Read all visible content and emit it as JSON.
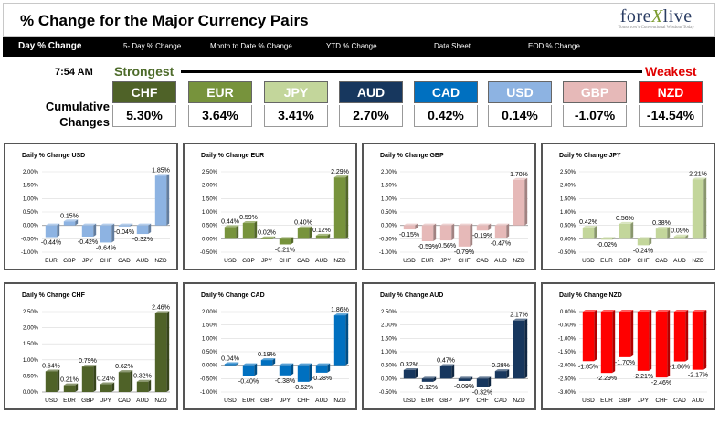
{
  "header": {
    "title": "% Change for the Major Currency Pairs",
    "logo_main_a": "fore",
    "logo_main_x": "X",
    "logo_main_b": "live",
    "logo_sub": "Tomorrow's Conventional Wisdom Today"
  },
  "nav": {
    "items": [
      {
        "label": "Day % Change"
      },
      {
        "label": "5- Day % Change"
      },
      {
        "label": "Month to Date % Change"
      },
      {
        "label": "YTD % Change"
      },
      {
        "label": "Data Sheet"
      },
      {
        "label": "EOD % Change"
      }
    ]
  },
  "summary": {
    "time": "7:54 AM",
    "strongest_label": "Strongest",
    "weakest_label": "Weakest",
    "cumulative_label_line1": "Cumulative",
    "cumulative_label_line2": "Changes",
    "currencies": [
      {
        "name": "CHF",
        "value": "5.30%",
        "color": "#4f6228"
      },
      {
        "name": "EUR",
        "value": "3.64%",
        "color": "#77933c"
      },
      {
        "name": "JPY",
        "value": "3.41%",
        "color": "#c3d69b"
      },
      {
        "name": "AUD",
        "value": "2.70%",
        "color": "#17375e"
      },
      {
        "name": "CAD",
        "value": "0.42%",
        "color": "#0070c0"
      },
      {
        "name": "USD",
        "value": "0.14%",
        "color": "#8db3e2"
      },
      {
        "name": "GBP",
        "value": "-1.07%",
        "color": "#e6b9b8"
      },
      {
        "name": "NZD",
        "value": "-14.54%",
        "color": "#ff0000"
      }
    ]
  },
  "chart_data": [
    {
      "type": "bar",
      "title": "Daily % Change USD",
      "categories": [
        "EUR",
        "GBP",
        "JPY",
        "CHF",
        "CAD",
        "AUD",
        "NZD"
      ],
      "values": [
        -0.44,
        0.15,
        -0.42,
        -0.64,
        -0.04,
        -0.32,
        1.85
      ],
      "labels": [
        "-0.44%",
        "0.15%",
        "-0.42%",
        "-0.64%",
        "-0.04%",
        "-0.32%",
        "1.85%"
      ],
      "ylim": [
        -1.0,
        2.0
      ],
      "ticks": [
        "-1.00%",
        "-0.50%",
        "0.00%",
        "0.50%",
        "1.00%",
        "1.50%",
        "2.00%"
      ],
      "color": "#8db3e2"
    },
    {
      "type": "bar",
      "title": "Daily % Change EUR",
      "categories": [
        "USD",
        "GBP",
        "JPY",
        "CHF",
        "CAD",
        "AUD",
        "NZD"
      ],
      "values": [
        0.44,
        0.59,
        0.02,
        -0.21,
        0.4,
        0.12,
        2.29
      ],
      "labels": [
        "0.44%",
        "0.59%",
        "0.02%",
        "-0.21%",
        "0.40%",
        "0.12%",
        "2.29%"
      ],
      "ylim": [
        -0.5,
        2.5
      ],
      "ticks": [
        "-0.50%",
        "0.00%",
        "0.50%",
        "1.00%",
        "1.50%",
        "2.00%",
        "2.50%"
      ],
      "color": "#77933c"
    },
    {
      "type": "bar",
      "title": "Daily % Change GBP",
      "categories": [
        "USD",
        "EUR",
        "JPY",
        "CHF",
        "CAD",
        "AUD",
        "NZD"
      ],
      "values": [
        -0.15,
        -0.59,
        -0.56,
        -0.79,
        -0.19,
        -0.47,
        1.7
      ],
      "labels": [
        "-0.15%",
        "-0.59%",
        "-0.56%",
        "-0.79%",
        "-0.19%",
        "-0.47%",
        "1.70%"
      ],
      "ylim": [
        -1.0,
        2.0
      ],
      "ticks": [
        "-1.00%",
        "-0.50%",
        "0.00%",
        "0.50%",
        "1.00%",
        "1.50%",
        "2.00%"
      ],
      "color": "#e6b9b8"
    },
    {
      "type": "bar",
      "title": "Daily % Change JPY",
      "categories": [
        "USD",
        "EUR",
        "GBP",
        "CHF",
        "CAD",
        "AUD",
        "NZD"
      ],
      "values": [
        0.42,
        -0.02,
        0.56,
        -0.24,
        0.38,
        0.09,
        2.21
      ],
      "labels": [
        "0.42%",
        "-0.02%",
        "0.56%",
        "-0.24%",
        "0.38%",
        "0.09%",
        "2.21%"
      ],
      "ylim": [
        -0.5,
        2.5
      ],
      "ticks": [
        "-0.50%",
        "0.00%",
        "0.50%",
        "1.00%",
        "1.50%",
        "2.00%",
        "2.50%"
      ],
      "color": "#c3d69b"
    },
    {
      "type": "bar",
      "title": "Daily % Change CHF",
      "categories": [
        "USD",
        "EUR",
        "GBP",
        "JPY",
        "CAD",
        "AUD",
        "NZD"
      ],
      "values": [
        0.64,
        0.21,
        0.79,
        0.24,
        0.62,
        0.32,
        2.46
      ],
      "labels": [
        "0.64%",
        "0.21%",
        "0.79%",
        "0.24%",
        "0.62%",
        "0.32%",
        "2.46%"
      ],
      "ylim": [
        0.0,
        2.5
      ],
      "ticks": [
        "0.00%",
        "0.50%",
        "1.00%",
        "1.50%",
        "2.00%",
        "2.50%"
      ],
      "color": "#4f6228"
    },
    {
      "type": "bar",
      "title": "Daily % Change CAD",
      "categories": [
        "USD",
        "EUR",
        "GBP",
        "JPY",
        "CHF",
        "AUD",
        "NZD"
      ],
      "values": [
        0.04,
        -0.4,
        0.19,
        -0.38,
        -0.62,
        -0.28,
        1.86
      ],
      "labels": [
        "0.04%",
        "-0.40%",
        "0.19%",
        "-0.38%",
        "-0.62%",
        "-0.28%",
        "1.86%"
      ],
      "ylim": [
        -1.0,
        2.0
      ],
      "ticks": [
        "-1.00%",
        "-0.50%",
        "0.00%",
        "0.50%",
        "1.00%",
        "1.50%",
        "2.00%"
      ],
      "color": "#0070c0"
    },
    {
      "type": "bar",
      "title": "Daily % Change AUD",
      "categories": [
        "USD",
        "EUR",
        "GBP",
        "JPY",
        "CHF",
        "CAD",
        "NZD"
      ],
      "values": [
        0.32,
        -0.12,
        0.47,
        -0.09,
        -0.32,
        0.28,
        2.17
      ],
      "labels": [
        "0.32%",
        "-0.12%",
        "0.47%",
        "-0.09%",
        "-0.32%",
        "0.28%",
        "2.17%"
      ],
      "ylim": [
        -0.5,
        2.5
      ],
      "ticks": [
        "-0.50%",
        "0.00%",
        "0.50%",
        "1.00%",
        "1.50%",
        "2.00%",
        "2.50%"
      ],
      "color": "#17375e"
    },
    {
      "type": "bar",
      "title": "Daily % Change NZD",
      "categories": [
        "USD",
        "EUR",
        "GBP",
        "JPY",
        "CHF",
        "CAD",
        "AUD"
      ],
      "values": [
        -1.85,
        -2.29,
        -1.7,
        -2.21,
        -2.46,
        -1.86,
        -2.17
      ],
      "labels": [
        "-1.85%",
        "-2.29%",
        "-1.70%",
        "-2.21%",
        "-2.46%",
        "-1.86%",
        "-2.17%"
      ],
      "ylim": [
        -3.0,
        0.0
      ],
      "ticks": [
        "-3.00%",
        "-2.50%",
        "-2.00%",
        "-1.50%",
        "-1.00%",
        "-0.50%",
        "0.00%"
      ],
      "color": "#ff0000"
    }
  ]
}
